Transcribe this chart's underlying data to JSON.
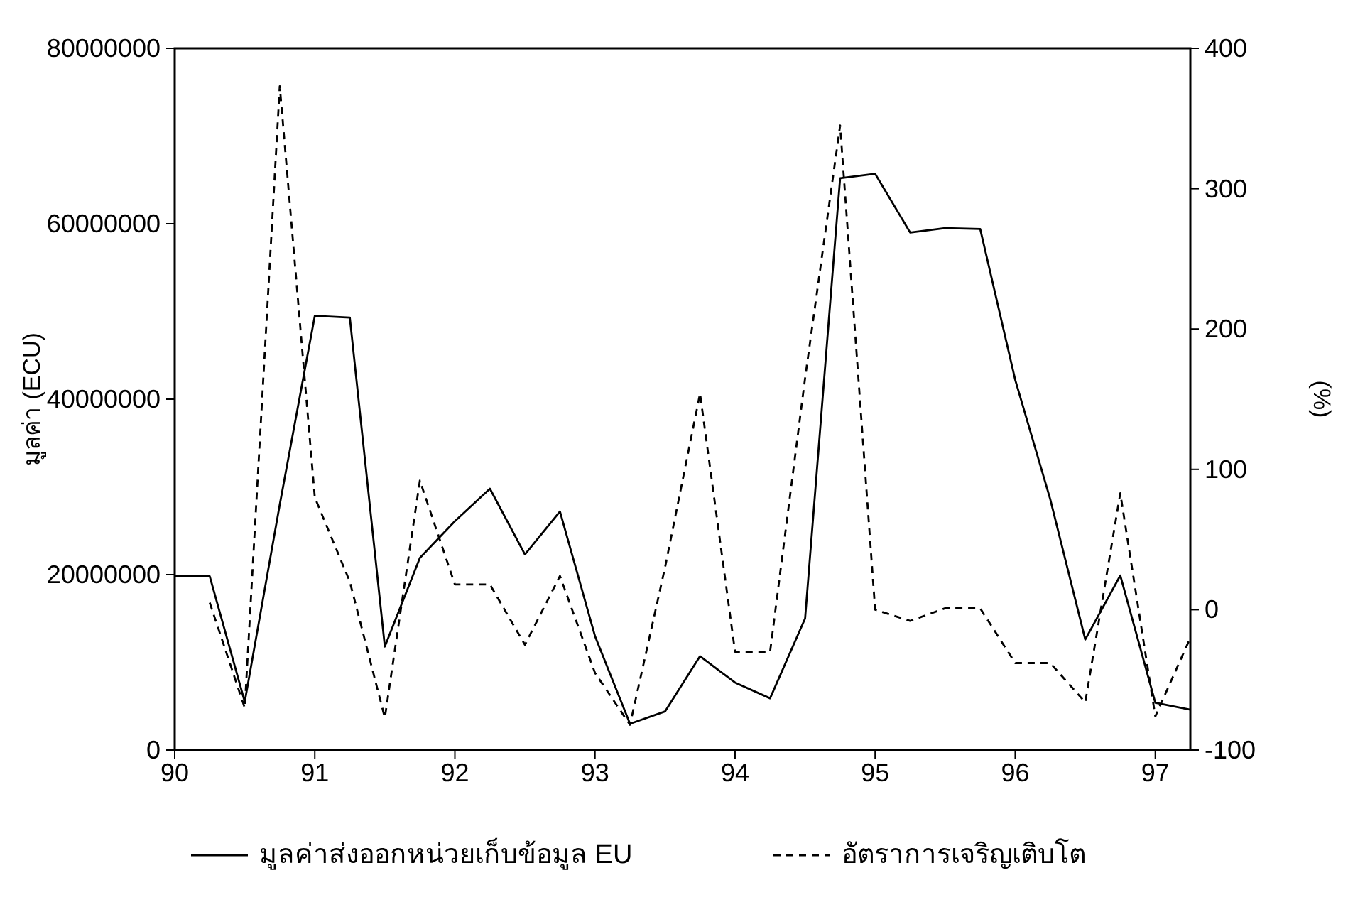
{
  "chart_data": {
    "type": "line",
    "ylabel": "มูลค่า (ECU)",
    "y2label": "(%)",
    "legend": "bottom",
    "grid": false,
    "marker": "none",
    "x": [
      1990,
      1990.25,
      1990.5,
      1990.75,
      1991,
      1991.25,
      1991.5,
      1991.75,
      1992,
      1992.25,
      1992.5,
      1992.75,
      1993,
      1993.25,
      1993.5,
      1993.75,
      1994,
      1994.25,
      1994.5,
      1994.75,
      1995,
      1995.25,
      1995.5,
      1995.75,
      1996,
      1996.25,
      1996.5,
      1996.75,
      1997,
      1997.25
    ],
    "xlim": [
      1990,
      1997.25
    ],
    "xticks": [
      {
        "value": 1990,
        "label": "90"
      },
      {
        "value": 1991,
        "label": "91"
      },
      {
        "value": 1992,
        "label": "92"
      },
      {
        "value": 1993,
        "label": "93"
      },
      {
        "value": 1994,
        "label": "94"
      },
      {
        "value": 1995,
        "label": "95"
      },
      {
        "value": 1996,
        "label": "96"
      },
      {
        "value": 1997,
        "label": "97"
      }
    ],
    "ylim": [
      0,
      80000000
    ],
    "yticks": [
      0,
      20000000,
      40000000,
      60000000,
      80000000
    ],
    "y2lim": [
      -100,
      400
    ],
    "y2ticks": [
      -100,
      0,
      100,
      200,
      300,
      400
    ],
    "series": [
      {
        "name": "มูลค่าส่งออกหน่วยเก็บข้อมูล EU",
        "color": "#000000",
        "line_style": "solid",
        "values": [
          19800000,
          19800000,
          5500000,
          28000000,
          49500000,
          49300000,
          11800000,
          21900000,
          26100000,
          29800000,
          22300000,
          27200000,
          13000000,
          3000000,
          4400000,
          10700000,
          7700000,
          5900000,
          15000000,
          65200000,
          65700000,
          59000000,
          59500000,
          59400000,
          42200000,
          28600000,
          12600000,
          19900000,
          5400000,
          4600000
        ]
      },
      {
        "name": "อัตราการเจริญเติบโต",
        "color": "#000000",
        "line_style": "dashed",
        "axis": "y2",
        "values": [
          null,
          5,
          -70,
          373,
          80,
          20,
          -77,
          92,
          18,
          18,
          -25,
          24,
          -45,
          -82,
          30,
          154,
          -30,
          -30,
          165,
          345,
          0,
          -8,
          1,
          1,
          -38,
          -38,
          -66,
          83,
          -76,
          -20
        ]
      }
    ]
  }
}
